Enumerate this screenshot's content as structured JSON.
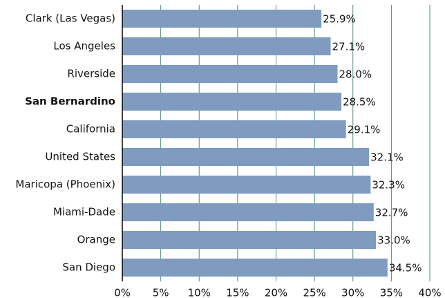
{
  "chart_data": {
    "type": "hbar",
    "categories": [
      "Clark (Las Vegas)",
      "Los Angeles",
      "Riverside",
      "San Bernardino",
      "California",
      "United States",
      "Maricopa (Phoenix)",
      "Miami-Dade",
      "Orange",
      "San Diego"
    ],
    "values": [
      25.9,
      27.1,
      28.0,
      28.5,
      29.1,
      32.1,
      32.3,
      32.7,
      33.0,
      34.5
    ],
    "value_labels": [
      "25.9%",
      "27.1%",
      "28.0%",
      "28.5%",
      "29.1%",
      "32.1%",
      "32.3%",
      "32.7%",
      "33.0%",
      "34.5%"
    ],
    "bold_categories": [
      3
    ],
    "color": "#7f9cc0",
    "xlim": [
      0,
      40
    ],
    "xticks": [
      {
        "value": 0,
        "label": "0%"
      },
      {
        "value": 5,
        "label": "5%"
      },
      {
        "value": 10,
        "label": "10%"
      },
      {
        "value": 15,
        "label": "15%"
      },
      {
        "value": 20,
        "label": "20%"
      },
      {
        "value": 25,
        "label": "25%"
      },
      {
        "value": 30,
        "label": "30%"
      },
      {
        "value": 35,
        "label": "35%"
      },
      {
        "value": 40,
        "label": "40%"
      }
    ],
    "grid": true
  }
}
